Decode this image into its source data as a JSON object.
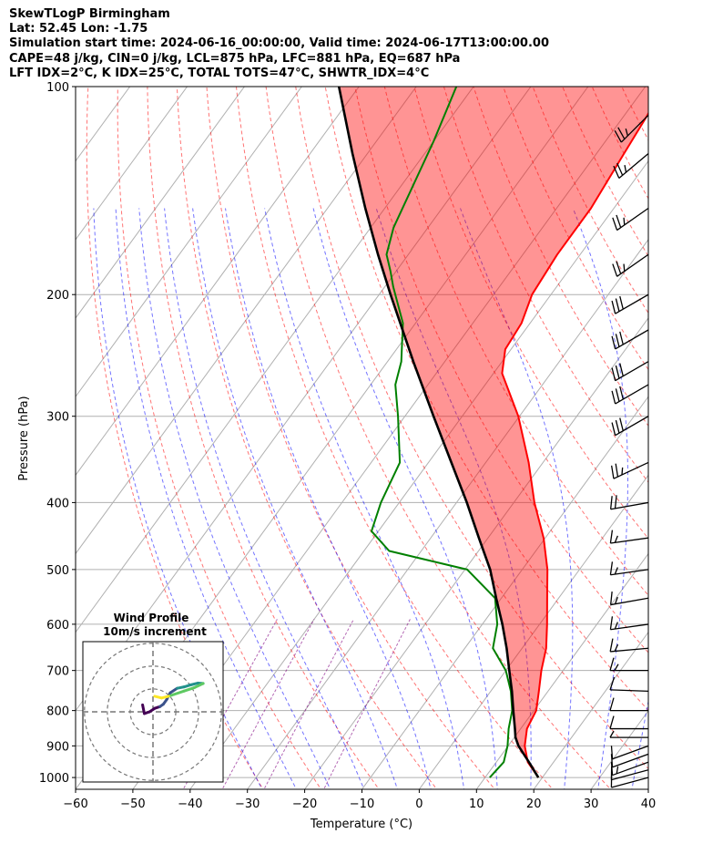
{
  "header": {
    "line1": "SkewTLogP Birmingham",
    "line2": "Lat: 52.45   Lon: -1.75",
    "line3": "Simulation start time: 2024-06-16_00:00:00, Valid time: 2024-06-17T13:00:00.00",
    "line4": "CAPE=48 j/kg, CIN=0 j/kg, LCL=875 hPa, LFC=881 hPa, EQ=687 hPa",
    "line5": "LFT IDX=2°C, K IDX=25°C, TOTAL TOTS=47°C, SHWTR_IDX=4°C"
  },
  "chart_data": {
    "type": "skew-t",
    "xlabel": "Temperature (°C)",
    "ylabel": "Pressure (hPa)",
    "xlim": [
      -60,
      40
    ],
    "ylim": [
      1040,
      100
    ],
    "x_ticks": [
      "−60",
      "−50",
      "−40",
      "−30",
      "−20",
      "−10",
      "0",
      "10",
      "20",
      "30",
      "40"
    ],
    "y_ticks": [
      {
        "p": 100,
        "label": "100"
      },
      {
        "p": 200,
        "label": "200"
      },
      {
        "p": 300,
        "label": "300"
      },
      {
        "p": 400,
        "label": "400"
      },
      {
        "p": 500,
        "label": "500"
      },
      {
        "p": 600,
        "label": "600"
      },
      {
        "p": 700,
        "label": "700"
      },
      {
        "p": 800,
        "label": "800"
      },
      {
        "p": 900,
        "label": "900"
      },
      {
        "p": 1000,
        "label": "1000"
      }
    ],
    "grid": true,
    "colors": {
      "temperature": "#ff0000",
      "dewpoint": "#008000",
      "parcel": "#000000",
      "cape_fill": "#1f77b4",
      "cin_fill": "#ff0000",
      "dry_adiabats": "#ff0000",
      "moist_adiabats": "#0000ff",
      "mixing_ratio": "#800080",
      "isotherms": "#808080"
    },
    "temperature": [
      {
        "p": 1000,
        "t": 19.3
      },
      {
        "p": 950,
        "t": 15.5
      },
      {
        "p": 900,
        "t": 12.9
      },
      {
        "p": 850,
        "t": 11.1
      },
      {
        "p": 800,
        "t": 10.4
      },
      {
        "p": 750,
        "t": 8.4
      },
      {
        "p": 700,
        "t": 6.2
      },
      {
        "p": 650,
        "t": 4.2
      },
      {
        "p": 600,
        "t": 1.3
      },
      {
        "p": 550,
        "t": -2.0
      },
      {
        "p": 500,
        "t": -5.6
      },
      {
        "p": 450,
        "t": -10.3
      },
      {
        "p": 400,
        "t": -16.4
      },
      {
        "p": 350,
        "t": -22.5
      },
      {
        "p": 300,
        "t": -30.2
      },
      {
        "p": 260,
        "t": -38.5
      },
      {
        "p": 240,
        "t": -41.0
      },
      {
        "p": 220,
        "t": -41.5
      },
      {
        "p": 200,
        "t": -43.3
      },
      {
        "p": 175,
        "t": -44.0
      },
      {
        "p": 150,
        "t": -44.0
      },
      {
        "p": 125,
        "t": -45.2
      },
      {
        "p": 110,
        "t": -46.0
      },
      {
        "p": 100,
        "t": -47.0
      }
    ],
    "dewpoint": [
      {
        "p": 1000,
        "t": 10.8
      },
      {
        "p": 950,
        "t": 11.3
      },
      {
        "p": 900,
        "t": 9.9
      },
      {
        "p": 850,
        "t": 7.9
      },
      {
        "p": 800,
        "t": 6.2
      },
      {
        "p": 750,
        "t": 3.5
      },
      {
        "p": 700,
        "t": 0.0
      },
      {
        "p": 650,
        "t": -5.1
      },
      {
        "p": 600,
        "t": -7.4
      },
      {
        "p": 550,
        "t": -11.1
      },
      {
        "p": 500,
        "t": -19.6
      },
      {
        "p": 470,
        "t": -35.6
      },
      {
        "p": 440,
        "t": -41.2
      },
      {
        "p": 400,
        "t": -43.2
      },
      {
        "p": 350,
        "t": -45.0
      },
      {
        "p": 300,
        "t": -51.2
      },
      {
        "p": 270,
        "t": -55.7
      },
      {
        "p": 250,
        "t": -57.6
      },
      {
        "p": 220,
        "t": -62.2
      },
      {
        "p": 195,
        "t": -68.5
      },
      {
        "p": 185,
        "t": -71.0
      },
      {
        "p": 175,
        "t": -73.8
      },
      {
        "p": 160,
        "t": -76.0
      },
      {
        "p": 120,
        "t": -80.0
      },
      {
        "p": 100,
        "t": -83.0
      }
    ],
    "parcel": [
      {
        "p": 1000,
        "t": 19.3
      },
      {
        "p": 950,
        "t": 15.7
      },
      {
        "p": 900,
        "t": 11.8
      },
      {
        "p": 875,
        "t": 10.2
      },
      {
        "p": 850,
        "t": 9.0
      },
      {
        "p": 800,
        "t": 6.4
      },
      {
        "p": 750,
        "t": 3.7
      },
      {
        "p": 700,
        "t": 0.6
      },
      {
        "p": 650,
        "t": -2.7
      },
      {
        "p": 600,
        "t": -6.5
      },
      {
        "p": 550,
        "t": -10.9
      },
      {
        "p": 500,
        "t": -15.6
      },
      {
        "p": 450,
        "t": -21.6
      },
      {
        "p": 400,
        "t": -28.2
      },
      {
        "p": 350,
        "t": -36.0
      },
      {
        "p": 300,
        "t": -45.0
      },
      {
        "p": 250,
        "t": -55.5
      },
      {
        "p": 200,
        "t": -68.0
      },
      {
        "p": 175,
        "t": -75.3
      },
      {
        "p": 150,
        "t": -83.4
      },
      {
        "p": 125,
        "t": -92.6
      },
      {
        "p": 100,
        "t": -103.5
      }
    ],
    "wind_barbs": [
      {
        "p": 1000,
        "dir": 255,
        "spd_kt": 12
      },
      {
        "p": 975,
        "dir": 255,
        "spd_kt": 14
      },
      {
        "p": 950,
        "dir": 250,
        "spd_kt": 15
      },
      {
        "p": 925,
        "dir": 250,
        "spd_kt": 13
      },
      {
        "p": 900,
        "dir": 250,
        "spd_kt": 10
      },
      {
        "p": 875,
        "dir": 270,
        "spd_kt": 8
      },
      {
        "p": 850,
        "dir": 270,
        "spd_kt": 10
      },
      {
        "p": 800,
        "dir": 270,
        "spd_kt": 12
      },
      {
        "p": 750,
        "dir": 272,
        "spd_kt": 14
      },
      {
        "p": 700,
        "dir": 270,
        "spd_kt": 15
      },
      {
        "p": 650,
        "dir": 265,
        "spd_kt": 15
      },
      {
        "p": 600,
        "dir": 262,
        "spd_kt": 15
      },
      {
        "p": 550,
        "dir": 260,
        "spd_kt": 15
      },
      {
        "p": 500,
        "dir": 262,
        "spd_kt": 17
      },
      {
        "p": 450,
        "dir": 262,
        "spd_kt": 18
      },
      {
        "p": 400,
        "dir": 260,
        "spd_kt": 20
      },
      {
        "p": 350,
        "dir": 245,
        "spd_kt": 25
      },
      {
        "p": 300,
        "dir": 240,
        "spd_kt": 30
      },
      {
        "p": 270,
        "dir": 240,
        "spd_kt": 32
      },
      {
        "p": 250,
        "dir": 240,
        "spd_kt": 30
      },
      {
        "p": 225,
        "dir": 240,
        "spd_kt": 30
      },
      {
        "p": 200,
        "dir": 240,
        "spd_kt": 30
      },
      {
        "p": 175,
        "dir": 235,
        "spd_kt": 28
      },
      {
        "p": 150,
        "dir": 235,
        "spd_kt": 25
      },
      {
        "p": 125,
        "dir": 230,
        "spd_kt": 25
      },
      {
        "p": 110,
        "dir": 225,
        "spd_kt": 28
      }
    ]
  },
  "inset": {
    "title1": "Wind Profile",
    "title2": "10m/s increment",
    "hodograph": [
      {
        "u": -3.0,
        "v": 2.0
      },
      {
        "u": -2.5,
        "v": -0.5
      },
      {
        "u": -1.0,
        "v": 0.0
      },
      {
        "u": 0.5,
        "v": 1.0
      },
      {
        "u": 2.0,
        "v": 1.5
      },
      {
        "u": 3.0,
        "v": 2.2
      },
      {
        "u": 4.0,
        "v": 3.6
      },
      {
        "u": 5.0,
        "v": 5.5
      },
      {
        "u": 7.0,
        "v": 6.8
      },
      {
        "u": 9.0,
        "v": 7.2
      },
      {
        "u": 11.0,
        "v": 7.8
      },
      {
        "u": 13.0,
        "v": 8.3
      },
      {
        "u": 14.5,
        "v": 8.2
      },
      {
        "u": 12.0,
        "v": 7.0
      },
      {
        "u": 9.0,
        "v": 6.0
      },
      {
        "u": 6.0,
        "v": 5.0
      },
      {
        "u": 4.5,
        "v": 4.5
      },
      {
        "u": 2.5,
        "v": 4.0
      },
      {
        "u": 0.5,
        "v": 4.5
      }
    ]
  }
}
